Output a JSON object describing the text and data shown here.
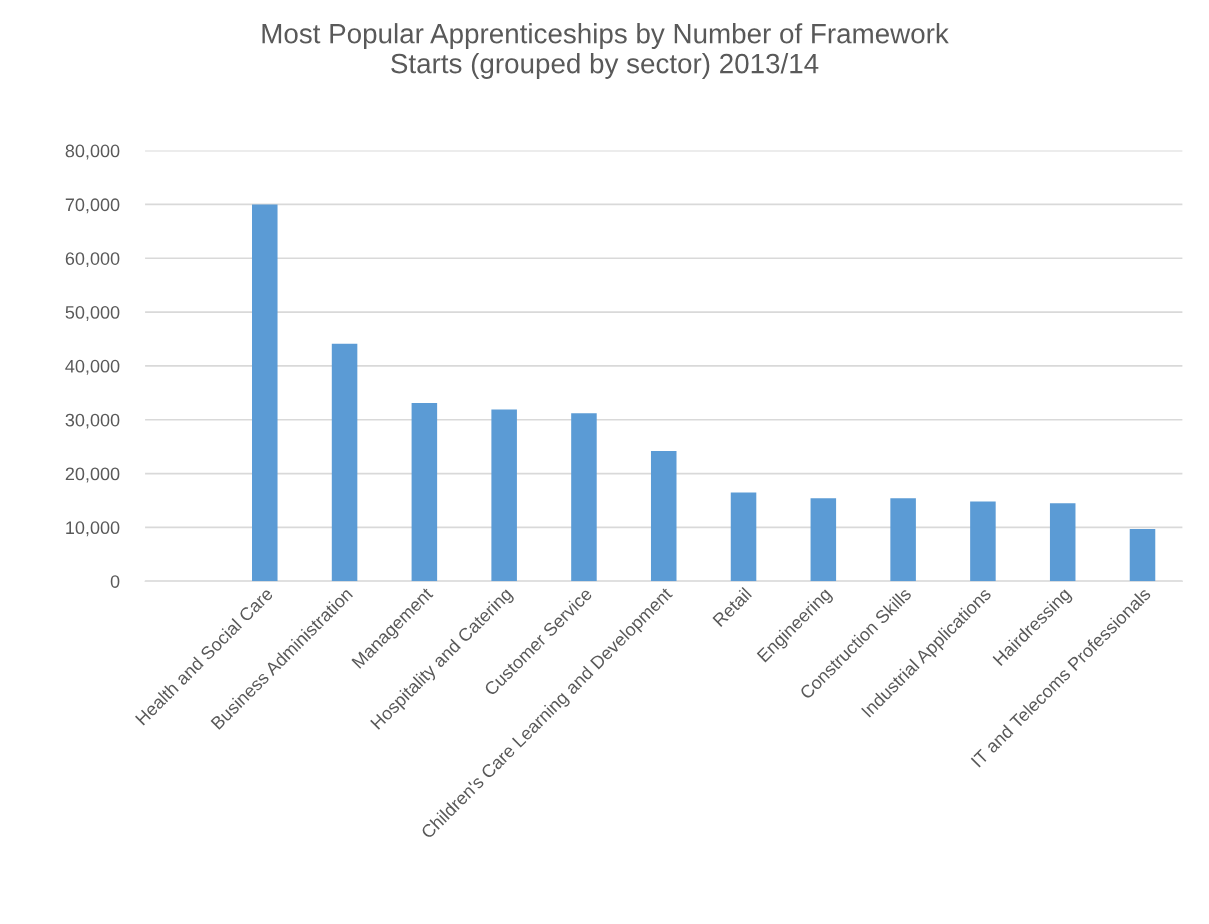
{
  "chart_data": {
    "type": "bar",
    "title": "Most Popular Apprenticeships by Number of Framework\nStarts (grouped by sector) 2013/14",
    "categories": [
      null,
      "Health and Social Care",
      "Business Administration",
      "Management",
      "Hospitality and Catering",
      "Customer Service",
      "Children's Care Learning and Development",
      "Retail",
      "Engineering",
      "Construction Skills",
      "Industrial Applications",
      "Hairdressing",
      "IT and Telecoms Professionals"
    ],
    "values": [
      null,
      70000,
      44100,
      33100,
      31900,
      31200,
      24200,
      16500,
      15400,
      15400,
      14800,
      14500,
      9700
    ],
    "color": "#5b9bd5",
    "ylim": [
      0,
      80000
    ],
    "yticks": [
      {
        "value": 0,
        "label": "0"
      },
      {
        "value": 10000,
        "label": "10,000"
      },
      {
        "value": 20000,
        "label": "20,000"
      },
      {
        "value": 30000,
        "label": "30,000"
      },
      {
        "value": 40000,
        "label": "40,000"
      },
      {
        "value": 50000,
        "label": "50,000"
      },
      {
        "value": 60000,
        "label": "60,000"
      },
      {
        "value": 70000,
        "label": "70,000"
      },
      {
        "value": 80000,
        "label": "80,000"
      }
    ],
    "grid": "y"
  }
}
